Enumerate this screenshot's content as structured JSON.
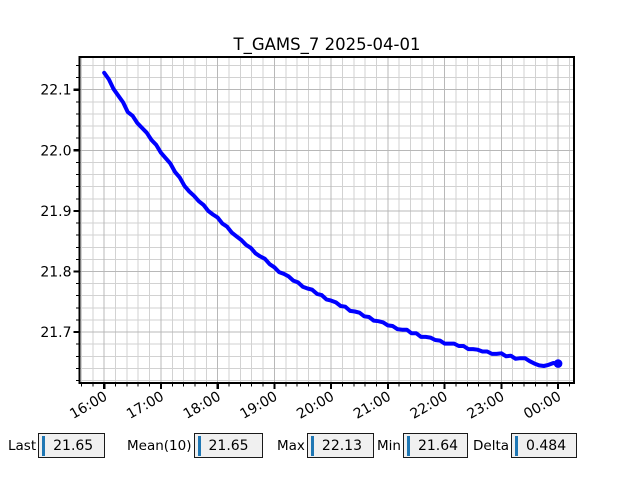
{
  "title": "T_GAMS_7 2025-04-01",
  "colors": {
    "line": "#0000ff",
    "grid_major": "#b8b8b8",
    "grid_minor": "#d2d2d2",
    "axis": "#000000",
    "textbox_bg": "#f0f0f0",
    "textbox_border": "#1a1a1a",
    "textbox_cursor": "#1f77b4",
    "background": "#ffffff"
  },
  "chart_data": {
    "type": "line",
    "title": "T_GAMS_7 2025-04-01",
    "xlabel": "",
    "ylabel": "",
    "grid": true,
    "legend": "none",
    "x_tick_labels": [
      "16:00",
      "17:00",
      "18:00",
      "19:00",
      "20:00",
      "21:00",
      "22:00",
      "23:00",
      "00:00"
    ],
    "x_tick_hours": [
      0,
      1,
      2,
      3,
      4,
      5,
      6,
      7,
      8
    ],
    "y_ticks": [
      21.7,
      21.8,
      21.9,
      22.0,
      22.1
    ],
    "y_tick_labels": [
      "21.7",
      "21.8",
      "21.9",
      "22.0",
      "22.1"
    ],
    "xlim_hours": [
      -0.435,
      8.28
    ],
    "ylim": [
      21.616,
      22.154
    ],
    "minor_x_step_hours": 0.2,
    "minor_y_step": 0.02,
    "series": [
      {
        "name": "T_GAMS_7",
        "color": "#0000ff",
        "x_start_hours": 0.0,
        "x_step_hours": 0.0833333,
        "end_marker": true,
        "values": [
          22.128,
          22.117,
          22.101,
          22.09,
          22.079,
          22.063,
          22.057,
          22.045,
          22.037,
          22.029,
          22.017,
          22.009,
          21.996,
          21.987,
          21.978,
          21.964,
          21.955,
          21.941,
          21.932,
          21.925,
          21.916,
          21.91,
          21.9,
          21.894,
          21.889,
          21.879,
          21.874,
          21.864,
          21.858,
          21.852,
          21.844,
          21.839,
          21.83,
          21.825,
          21.821,
          21.812,
          21.807,
          21.799,
          21.796,
          21.792,
          21.785,
          21.782,
          21.775,
          21.772,
          21.77,
          21.763,
          21.761,
          21.754,
          21.752,
          21.749,
          21.743,
          21.742,
          21.735,
          21.734,
          21.732,
          21.726,
          21.725,
          21.719,
          21.718,
          21.716,
          21.711,
          21.71,
          21.705,
          21.704,
          21.704,
          21.698,
          21.698,
          21.692,
          21.692,
          21.691,
          21.687,
          21.686,
          21.681,
          21.681,
          21.681,
          21.677,
          21.677,
          21.672,
          21.672,
          21.671,
          21.668,
          21.668,
          21.664,
          21.664,
          21.665,
          21.66,
          21.661,
          21.656,
          21.657,
          21.657,
          21.652,
          21.648,
          21.645,
          21.644,
          21.646,
          21.649,
          21.648
        ]
      }
    ]
  },
  "stats": [
    {
      "label": "Last",
      "value": "21.65"
    },
    {
      "label": "Mean(10)",
      "value": "21.65"
    },
    {
      "label": "Max",
      "value": "22.13"
    },
    {
      "label": "Min",
      "value": "21.64"
    },
    {
      "label": "Delta",
      "value": "0.484"
    }
  ]
}
